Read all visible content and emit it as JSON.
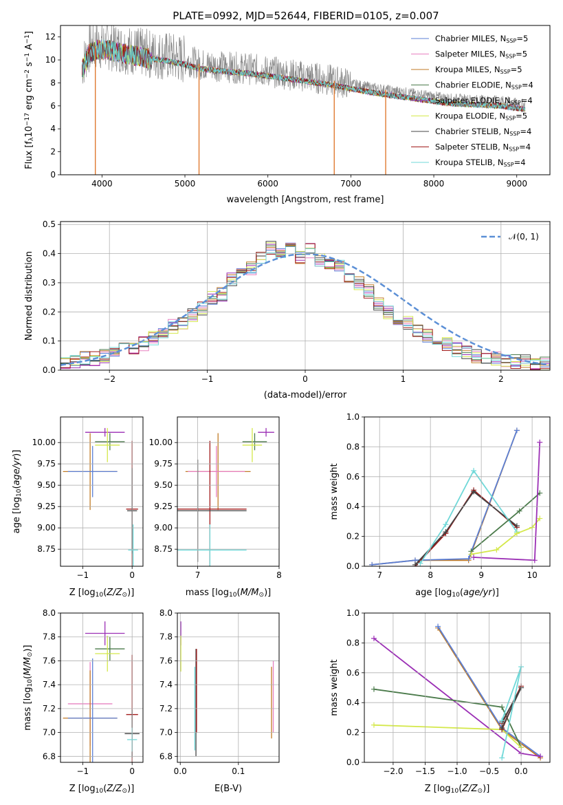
{
  "figure_title": "PLATE=0992, MJD=52644, FIBERID=0105, z=0.007",
  "colors": {
    "chabrier_miles": "#5b7fd6",
    "salpeter_miles": "#e880c0",
    "kroupa_miles": "#c07a25",
    "chabrier_elodie": "#4a7a4a",
    "salpeter_elodie": "#9b2fb5",
    "kroupa_elodie": "#d4e84a",
    "chabrier_stelib": "#444444",
    "salpeter_stelib": "#a01818",
    "kroupa_stelib": "#6fd8d8",
    "data_spectrum": "#888888",
    "model_orange": "#e07a30",
    "normal_curve": "#5b8fd6"
  },
  "chart_data": [
    {
      "id": "spectrum",
      "type": "line",
      "title": "PLATE=0992, MJD=52644, FIBERID=0105, z=0.007",
      "xlabel": "wavelength [Angstrom, rest frame]",
      "ylabel": "Flux [f_λ 10^-17 erg cm^-2 s^-1 A^-1]",
      "xlim": [
        3500,
        9400
      ],
      "ylim": [
        0,
        13
      ],
      "xticks": [
        4000,
        5000,
        6000,
        7000,
        8000,
        9000
      ],
      "yticks": [
        0,
        2,
        4,
        6,
        8,
        10,
        12
      ],
      "legend_position": "top-right",
      "legend": [
        "Chabrier MILES, N_SSP=5",
        "Salpeter MILES, N_SSP=5",
        "Kroupa MILES, N_SSP=5",
        "Chabrier ELODIE, N_SSP=4",
        "Salpeter ELODIE, N_SSP=4",
        "Kroupa ELODIE, N_SSP=5",
        "Chabrier STELIB, N_SSP=4",
        "Salpeter STELIB, N_SSP=4",
        "Kroupa STELIB, N_SSP=4"
      ],
      "continuum": {
        "x": [
          3760,
          3850,
          3950,
          4100,
          4300,
          4500,
          4800,
          5000,
          5200,
          5500,
          5800,
          6100,
          6400,
          6700,
          7000,
          7300,
          7600,
          7900,
          8200,
          8500,
          8800,
          9100
        ],
        "y": [
          9.5,
          11.0,
          11.3,
          11.2,
          10.9,
          10.6,
          10.3,
          10.0,
          9.6,
          9.4,
          9.2,
          8.9,
          8.6,
          8.3,
          7.9,
          7.5,
          7.2,
          6.9,
          6.6,
          6.5,
          6.4,
          6.1
        ]
      },
      "dropouts": [
        {
          "x": 5170,
          "y": 0
        },
        {
          "x": 6800,
          "y": 0
        },
        {
          "x": 7420,
          "y": 0
        },
        {
          "x": 3920,
          "y": 0
        }
      ]
    },
    {
      "id": "residuals",
      "type": "line",
      "xlabel": "(data-model)/error",
      "ylabel": "Normed distribution",
      "xlim": [
        -2.5,
        2.5
      ],
      "ylim": [
        0,
        0.51
      ],
      "xticks": [
        -2,
        -1,
        0,
        1,
        2
      ],
      "yticks": [
        0.0,
        0.1,
        0.2,
        0.3,
        0.4,
        0.5
      ],
      "grid": true,
      "legend_position": "top-right",
      "legend": [
        "𝒩(0, 1)"
      ],
      "bin_width": 0.1,
      "hist_values": [
        0.03,
        0.03,
        0.04,
        0.04,
        0.05,
        0.06,
        0.07,
        0.08,
        0.09,
        0.11,
        0.12,
        0.15,
        0.16,
        0.19,
        0.21,
        0.25,
        0.26,
        0.31,
        0.33,
        0.35,
        0.38,
        0.42,
        0.4,
        0.43,
        0.39,
        0.41,
        0.38,
        0.37,
        0.36,
        0.32,
        0.3,
        0.27,
        0.23,
        0.2,
        0.18,
        0.16,
        0.14,
        0.12,
        0.1,
        0.09,
        0.07,
        0.06,
        0.05,
        0.04,
        0.04,
        0.03,
        0.03,
        0.03,
        0.02,
        0.02
      ]
    },
    {
      "id": "age_vs_Z",
      "type": "scatter",
      "xlabel": "Z [log10(Z/Z_⊙)]",
      "ylabel": "age  [log10(age/yr)]",
      "xlim": [
        -1.45,
        0.22
      ],
      "ylim": [
        8.55,
        10.3
      ],
      "xticks": [
        -1,
        0
      ],
      "yticks": [
        8.75,
        9.0,
        9.25,
        9.5,
        9.75,
        10.0
      ],
      "points": [
        {
          "x": -0.55,
          "y": 10.12,
          "xerr": 0.4,
          "yerr": 0.05,
          "color": "salpeter_elodie"
        },
        {
          "x": -0.45,
          "y": 10.01,
          "xerr": 0.3,
          "yerr": 0.1,
          "color": "chabrier_elodie"
        },
        {
          "x": -0.5,
          "y": 9.97,
          "xerr": 0.25,
          "yerr": 0.2,
          "color": "kroupa_elodie"
        },
        {
          "x": -0.85,
          "y": 9.66,
          "xerr": 0.55,
          "yerr": 0.45,
          "color": "kroupa_miles"
        },
        {
          "x": -0.8,
          "y": 9.66,
          "xerr": 0.5,
          "yerr": 0.3,
          "color": "chabrier_miles"
        },
        {
          "x": 0.0,
          "y": 9.22,
          "xerr": 0.12,
          "yerr": 0.8,
          "color": "salpeter_stelib"
        },
        {
          "x": 0.0,
          "y": 9.2,
          "xerr": 0.1,
          "yerr": 0.5,
          "color": "chabrier_stelib"
        },
        {
          "x": 0.02,
          "y": 8.74,
          "xerr": 0.1,
          "yerr": 0.3,
          "color": "kroupa_stelib"
        }
      ]
    },
    {
      "id": "age_vs_mass",
      "type": "scatter",
      "xlabel": "mass [log10(M/M_⊙)]",
      "ylabel": "",
      "xlim": [
        6.75,
        8.0
      ],
      "ylim": [
        8.55,
        10.3
      ],
      "xticks": [
        7,
        8
      ],
      "yticks": [
        8.75,
        9.0,
        9.25,
        9.5,
        9.75,
        10.0
      ],
      "points": [
        {
          "x": 7.84,
          "y": 10.12,
          "xerr": 0.1,
          "yerr": 0.05,
          "color": "salpeter_elodie"
        },
        {
          "x": 7.7,
          "y": 10.01,
          "xerr": 0.15,
          "yerr": 0.1,
          "color": "chabrier_elodie"
        },
        {
          "x": 7.67,
          "y": 9.97,
          "xerr": 0.12,
          "yerr": 0.2,
          "color": "kroupa_elodie"
        },
        {
          "x": 7.25,
          "y": 9.66,
          "xerr": 0.4,
          "yerr": 0.45,
          "color": "kroupa_miles"
        },
        {
          "x": 7.23,
          "y": 9.66,
          "xerr": 0.35,
          "yerr": 0.3,
          "color": "salpeter_miles"
        },
        {
          "x": 7.15,
          "y": 9.22,
          "xerr": 0.45,
          "yerr": 0.8,
          "color": "salpeter_stelib"
        },
        {
          "x": 7.0,
          "y": 9.2,
          "xerr": 0.6,
          "yerr": 0.6,
          "color": "chabrier_stelib"
        },
        {
          "x": 7.15,
          "y": 8.74,
          "xerr": 0.45,
          "yerr": 0.3,
          "color": "kroupa_stelib"
        }
      ]
    },
    {
      "id": "massweight_vs_age",
      "type": "line",
      "xlabel": "age  [log10(age/yr)]",
      "ylabel": "mass weight",
      "xlim": [
        6.7,
        10.35
      ],
      "ylim": [
        0,
        1
      ],
      "xticks": [
        7,
        8,
        9,
        10
      ],
      "yticks": [
        0.0,
        0.2,
        0.4,
        0.6,
        0.8,
        1.0
      ],
      "grid": true,
      "series": [
        {
          "color": "kroupa_miles",
          "x": [
            6.85,
            7.7,
            8.75,
            9.7
          ],
          "y": [
            0.01,
            0.04,
            0.04,
            0.91
          ]
        },
        {
          "color": "chabrier_miles",
          "x": [
            6.85,
            7.7,
            8.75,
            9.7
          ],
          "y": [
            0.01,
            0.04,
            0.05,
            0.91
          ]
        },
        {
          "color": "salpeter_stelib",
          "x": [
            7.7,
            8.3,
            8.85,
            9.7
          ],
          "y": [
            0.0,
            0.22,
            0.51,
            0.26
          ]
        },
        {
          "color": "chabrier_stelib",
          "x": [
            7.7,
            8.3,
            8.85,
            9.7
          ],
          "y": [
            0.01,
            0.23,
            0.5,
            0.27
          ]
        },
        {
          "color": "kroupa_stelib",
          "x": [
            7.8,
            8.3,
            8.85,
            9.7
          ],
          "y": [
            0.02,
            0.28,
            0.64,
            0.23
          ]
        },
        {
          "color": "chabrier_elodie",
          "x": [
            8.8,
            9.75,
            10.15
          ],
          "y": [
            0.1,
            0.37,
            0.49
          ]
        },
        {
          "color": "kroupa_elodie",
          "x": [
            8.8,
            9.3,
            9.7,
            10.0,
            10.15
          ],
          "y": [
            0.08,
            0.11,
            0.22,
            0.26,
            0.32
          ]
        },
        {
          "color": "salpeter_elodie",
          "x": [
            8.85,
            10.05,
            10.15
          ],
          "y": [
            0.06,
            0.04,
            0.83
          ]
        }
      ]
    },
    {
      "id": "mass_vs_Z",
      "type": "scatter",
      "xlabel": "Z [log10(Z/Z_⊙)]",
      "ylabel": "mass [log10(M/M_⊙)]",
      "xlim": [
        -1.45,
        0.22
      ],
      "ylim": [
        6.75,
        8.0
      ],
      "xticks": [
        -1,
        0
      ],
      "yticks": [
        6.8,
        7.0,
        7.2,
        7.4,
        7.6,
        7.8,
        8.0
      ],
      "points": [
        {
          "x": -0.55,
          "y": 7.83,
          "xerr": 0.4,
          "yerr": 0.1,
          "color": "salpeter_elodie"
        },
        {
          "x": -0.45,
          "y": 7.7,
          "xerr": 0.3,
          "yerr": 0.1,
          "color": "chabrier_elodie"
        },
        {
          "x": -0.5,
          "y": 7.66,
          "xerr": 0.25,
          "yerr": 0.15,
          "color": "kroupa_elodie"
        },
        {
          "x": -0.85,
          "y": 7.24,
          "xerr": 0.45,
          "yerr": 0.35,
          "color": "salpeter_miles"
        },
        {
          "x": -0.85,
          "y": 7.12,
          "xerr": 0.55,
          "yerr": 0.4,
          "color": "kroupa_miles"
        },
        {
          "x": -0.8,
          "y": 7.12,
          "xerr": 0.5,
          "yerr": 0.5,
          "color": "chabrier_miles"
        },
        {
          "x": 0.0,
          "y": 7.15,
          "xerr": 0.12,
          "yerr": 0.5,
          "color": "salpeter_stelib"
        },
        {
          "x": 0.0,
          "y": 6.99,
          "xerr": 0.15,
          "yerr": 0.2,
          "color": "chabrier_stelib"
        },
        {
          "x": 0.0,
          "y": 6.94,
          "xerr": 0.1,
          "yerr": 0.1,
          "color": "kroupa_stelib"
        }
      ]
    },
    {
      "id": "mass_vs_ebv",
      "type": "scatter",
      "xlabel": "E(B-V)",
      "ylabel": "",
      "xlim": [
        -0.005,
        0.17
      ],
      "ylim": [
        6.75,
        8.0
      ],
      "xticks": [
        0.0,
        0.1
      ],
      "yticks": [
        6.8,
        7.0,
        7.2,
        7.4,
        7.6,
        7.8,
        8.0
      ],
      "points": [
        {
          "x": 0.001,
          "y": 7.83,
          "xerr": 0.0,
          "yerr": 0.1,
          "color": "salpeter_elodie"
        },
        {
          "x": 0.001,
          "y": 7.66,
          "xerr": 0.0,
          "yerr": 0.15,
          "color": "kroupa_elodie"
        },
        {
          "x": 0.025,
          "y": 7.2,
          "xerr": 0.0,
          "yerr": 0.35,
          "color": "kroupa_stelib"
        },
        {
          "x": 0.027,
          "y": 7.25,
          "xerr": 0.0,
          "yerr": 0.45,
          "color": "chabrier_stelib"
        },
        {
          "x": 0.028,
          "y": 7.35,
          "xerr": 0.0,
          "yerr": 0.35,
          "color": "salpeter_stelib"
        },
        {
          "x": 0.157,
          "y": 7.25,
          "xerr": 0.0,
          "yerr": 0.3,
          "color": "kroupa_miles"
        },
        {
          "x": 0.16,
          "y": 7.3,
          "xerr": 0.0,
          "yerr": 0.3,
          "color": "salpeter_miles"
        }
      ]
    },
    {
      "id": "massweight_vs_Z",
      "type": "line",
      "xlabel": "Z [log10(Z/Z_⊙)]",
      "ylabel": "mass weight",
      "xlim": [
        -2.45,
        0.45
      ],
      "ylim": [
        0,
        1
      ],
      "xticks": [
        -2.0,
        -1.5,
        -1.0,
        -0.5,
        0.0
      ],
      "yticks": [
        0.0,
        0.2,
        0.4,
        0.6,
        0.8,
        1.0
      ],
      "grid": true,
      "series": [
        {
          "color": "kroupa_miles",
          "x": [
            -1.3,
            -0.3,
            0.3
          ],
          "y": [
            0.9,
            0.22,
            0.03
          ]
        },
        {
          "color": "chabrier_miles",
          "x": [
            -1.3,
            -0.3,
            0.3
          ],
          "y": [
            0.91,
            0.23,
            0.04
          ]
        },
        {
          "color": "salpeter_elodie",
          "x": [
            -2.3,
            0.0,
            0.3
          ],
          "y": [
            0.83,
            0.06,
            0.04
          ]
        },
        {
          "color": "chabrier_elodie",
          "x": [
            -2.3,
            -0.3,
            0.0
          ],
          "y": [
            0.49,
            0.37,
            0.1
          ]
        },
        {
          "color": "kroupa_elodie",
          "x": [
            -2.3,
            -0.3,
            0.0
          ],
          "y": [
            0.25,
            0.22,
            0.1
          ]
        },
        {
          "color": "salpeter_stelib",
          "x": [
            -0.3,
            0.0,
            -0.3
          ],
          "y": [
            0.26,
            0.51,
            0.22
          ]
        },
        {
          "color": "chabrier_stelib",
          "x": [
            -0.3,
            0.0,
            -0.3
          ],
          "y": [
            0.27,
            0.5,
            0.23
          ]
        },
        {
          "color": "kroupa_stelib",
          "x": [
            -0.3,
            0.0,
            -0.3
          ],
          "y": [
            0.03,
            0.64,
            0.28
          ]
        }
      ]
    }
  ]
}
